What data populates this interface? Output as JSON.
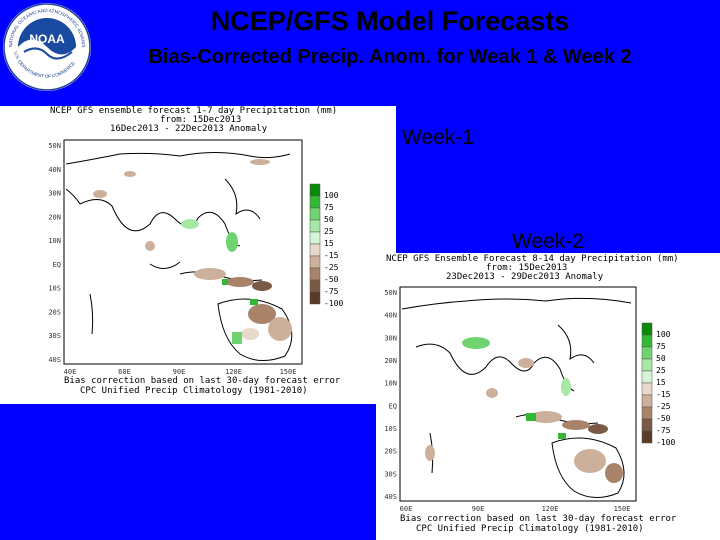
{
  "header": {
    "title": "NCEP/GFS Model Forecasts",
    "subtitle": "Bias-Corrected Precip. Anom. for Weak 1 & Week 2"
  },
  "logo": {
    "name": "noaa-logo",
    "text": "NOAA",
    "ring_top": "NATIONAL OCEANIC AND ATMOSPHERIC ADMINISTRATION",
    "ring_bottom": "U.S. DEPARTMENT OF COMMERCE"
  },
  "labels": {
    "week1": "Week-1",
    "week2": "Week-2"
  },
  "week1_map": {
    "title_line1": "NCEP GFS ensemble forecast 1-7 day Precipitation (mm)",
    "title_line2": "from: 15Dec2013",
    "title_line3": "16Dec2013 - 22Dec2013 Anomaly",
    "footer_line1": "Bias correction based on last 30-day forecast error",
    "footer_line2": "CPC Unified Precip Climatology (1981-2010)",
    "lat_ticks": [
      "50N",
      "40N",
      "30N",
      "20N",
      "10N",
      "EQ",
      "10S",
      "20S",
      "30S",
      "40S"
    ],
    "lon_ticks": [
      "40E",
      "60E",
      "90E",
      "120E",
      "150E"
    ],
    "legend": [
      "100",
      "75",
      "50",
      "25",
      "15",
      "-15",
      "-25",
      "-50",
      "-75",
      "-100"
    ]
  },
  "week2_map": {
    "title_line1": "NCEP GFS Ensemble Forecast 8-14 day Precipitation (mm)",
    "title_line2": "from: 15Dec2013",
    "title_line3": "23Dec2013 - 29Dec2013 Anomaly",
    "footer_line1": "Bias correction based on last 30-day forecast error",
    "footer_line2": "CPC Unified Precip Climatology (1981-2010)",
    "lat_ticks": [
      "50N",
      "40N",
      "30N",
      "20N",
      "10N",
      "EQ",
      "10S",
      "20S",
      "30S",
      "40S"
    ],
    "lon_ticks": [
      "60E",
      "90E",
      "120E",
      "150E"
    ],
    "legend": [
      "100",
      "75",
      "50",
      "25",
      "15",
      "-15",
      "-25",
      "-50",
      "-75",
      "-100"
    ]
  },
  "colors": {
    "background": "#0000ff",
    "wet": [
      "#0a8a0a",
      "#33b833",
      "#6fd36f",
      "#a6e8a6",
      "#d6f5d6"
    ],
    "dry": [
      "#e8d9cc",
      "#cdb09b",
      "#a9826a",
      "#7a5a45",
      "#5a3b28"
    ]
  }
}
